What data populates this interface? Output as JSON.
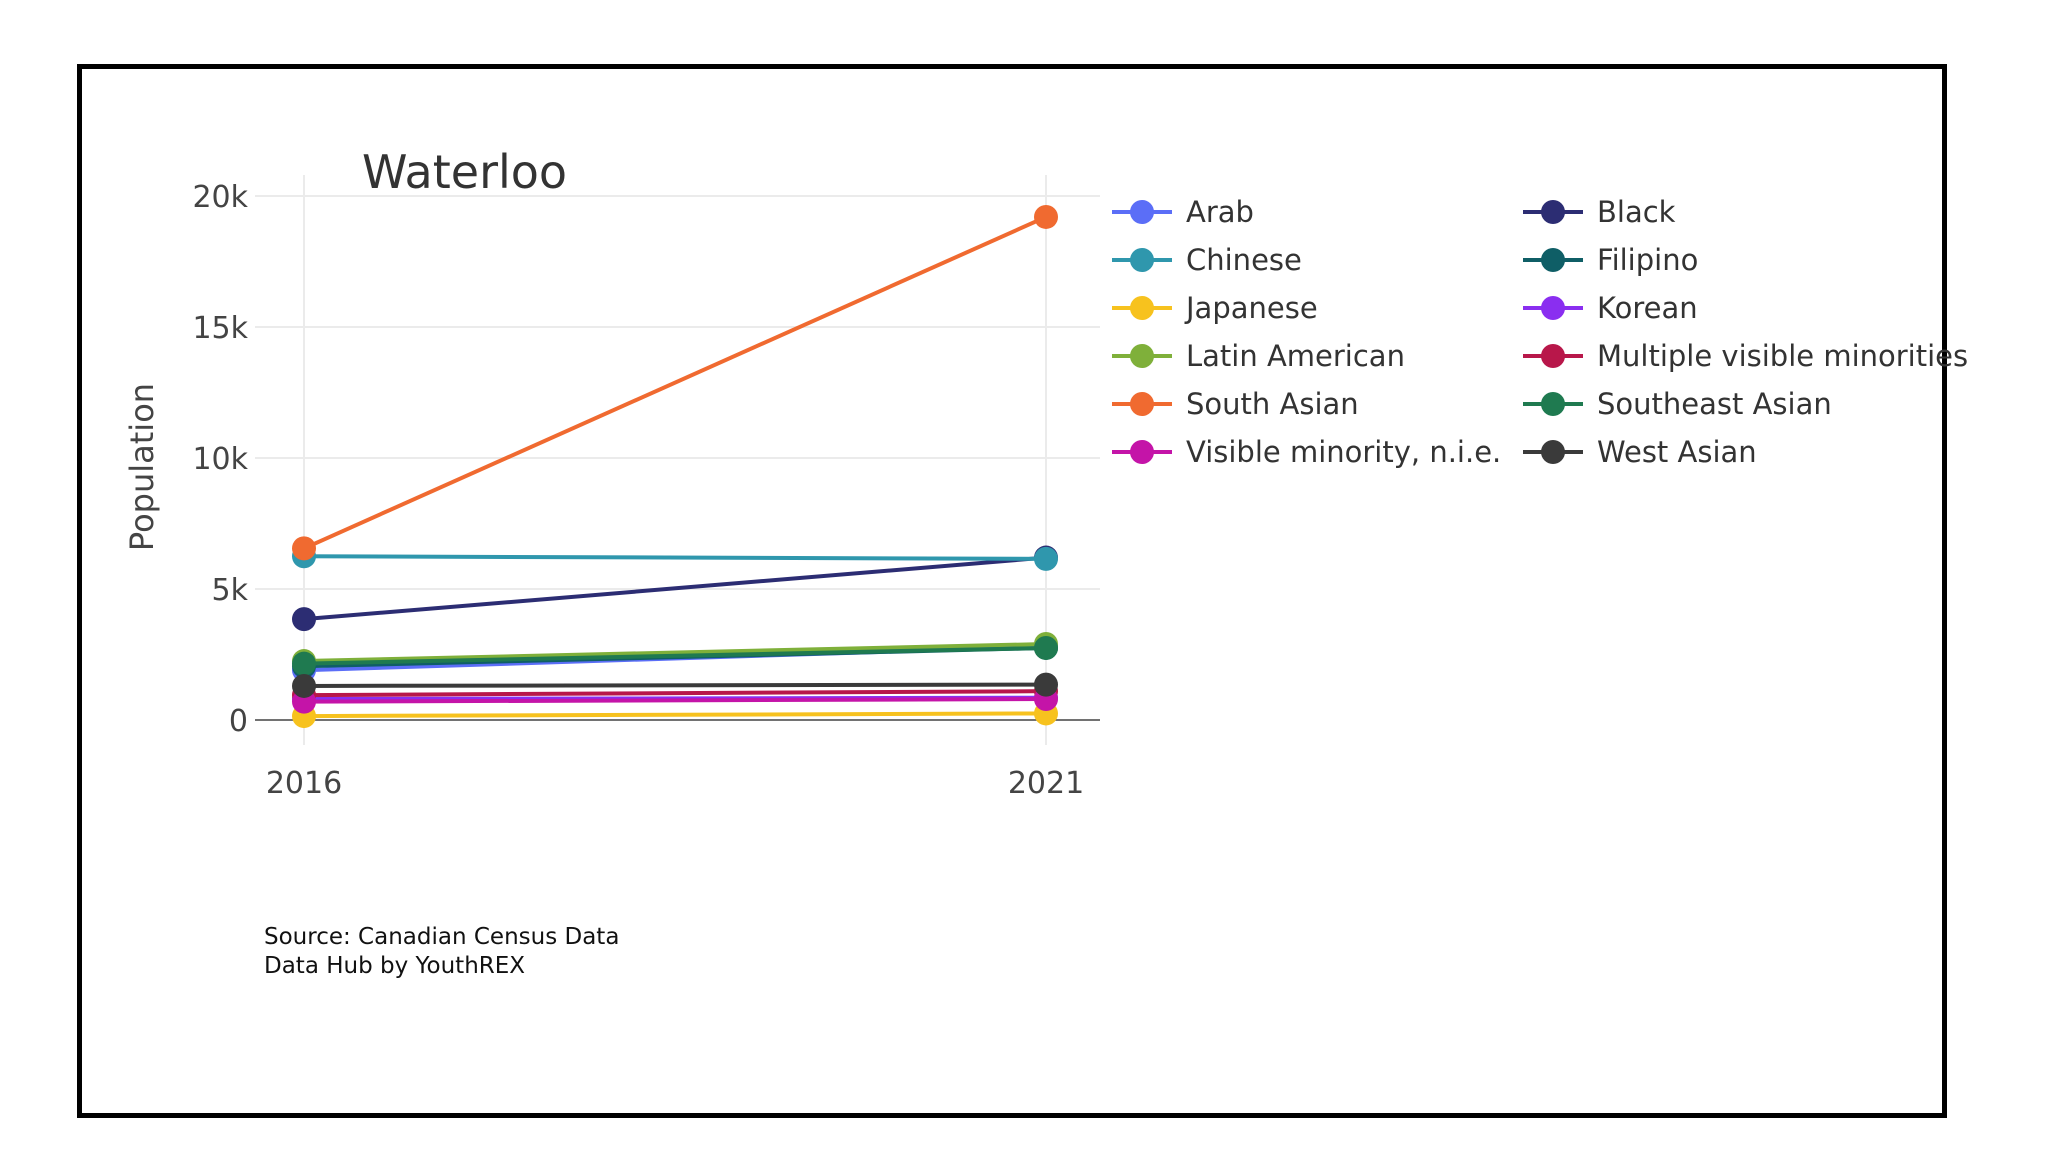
{
  "chart_data": {
    "type": "line",
    "title": "Waterloo",
    "xlabel": "",
    "ylabel": "Population",
    "x": [
      "2016",
      "2021"
    ],
    "ylim": [
      0,
      20500
    ],
    "yticks": [
      {
        "value": 0,
        "label": "0"
      },
      {
        "value": 5000,
        "label": "5k"
      },
      {
        "value": 10000,
        "label": "10k"
      },
      {
        "value": 15000,
        "label": "15k"
      },
      {
        "value": 20000,
        "label": "20k"
      }
    ],
    "grid": true,
    "legend_position": "right",
    "series": [
      {
        "name": "Arab",
        "color": "#5b6ef7",
        "values": [
          1900,
          2800
        ]
      },
      {
        "name": "Black",
        "color": "#2c2d73",
        "values": [
          3850,
          6200
        ]
      },
      {
        "name": "Chinese",
        "color": "#2f97ad",
        "values": [
          6250,
          6150
        ]
      },
      {
        "name": "Filipino",
        "color": "#0f5e66",
        "values": [
          2050,
          2750
        ]
      },
      {
        "name": "Japanese",
        "color": "#f7c21e",
        "values": [
          150,
          250
        ]
      },
      {
        "name": "Korean",
        "color": "#8a2ef0",
        "values": [
          800,
          850
        ]
      },
      {
        "name": "Latin American",
        "color": "#7fb03a",
        "values": [
          2250,
          2900
        ]
      },
      {
        "name": "Multiple visible minorities",
        "color": "#b8174a",
        "values": [
          950,
          1100
        ]
      },
      {
        "name": "South Asian",
        "color": "#f06a30",
        "values": [
          6550,
          19200
        ]
      },
      {
        "name": "Southeast Asian",
        "color": "#1f7a50",
        "values": [
          2150,
          2750
        ]
      },
      {
        "name": "Visible minority, n.i.e.",
        "color": "#c414a8",
        "values": [
          700,
          800
        ]
      },
      {
        "name": "West Asian",
        "color": "#3a3a3a",
        "values": [
          1300,
          1350
        ]
      }
    ],
    "legend_order": [
      [
        "Arab",
        "Black"
      ],
      [
        "Chinese",
        "Filipino"
      ],
      [
        "Japanese",
        "Korean"
      ],
      [
        "Latin American",
        "Multiple visible minorities"
      ],
      [
        "South Asian",
        "Southeast Asian"
      ],
      [
        "Visible minority, n.i.e.",
        "West Asian"
      ]
    ]
  },
  "source": {
    "line1": "Source: Canadian Census Data",
    "line2": "Data Hub by YouthREX"
  }
}
